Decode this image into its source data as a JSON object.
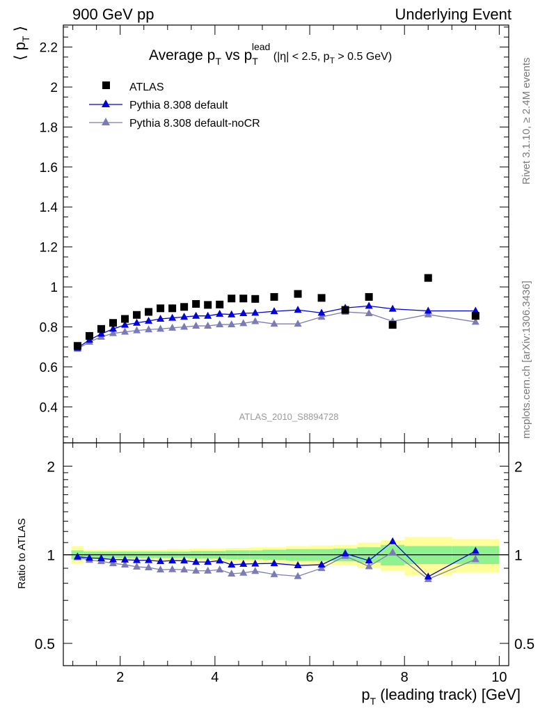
{
  "header": {
    "left": "900 GeV pp",
    "right": "Underlying Event"
  },
  "plot_title": {
    "main_a": "Average p",
    "main_a_sub": "T",
    "main_b": " vs p",
    "main_b_sub": "T",
    "main_b_sup": "lead",
    "cuts_a": " (|η| < 2.5, p",
    "cuts_sub": "T",
    "cuts_b": " > 0.5 GeV)"
  },
  "side_labels": {
    "rivet": "Rivet 3.1.10, ≥ 2.4M events",
    "mcplots": "mcplots.cern.ch [arXiv:1306.3436]"
  },
  "analysis_id": "ATLAS_2010_S8894728",
  "colors": {
    "atlas": "#000000",
    "pythia_default": "#0000dd",
    "pythia_nocr": "#7b7bb8",
    "band_stat": "#8ff28f",
    "band_total": "#ffff99"
  },
  "chart_data": {
    "type": "scatter",
    "ylabel": "⟨ p_T ⟩",
    "xlabel_a": "p",
    "xlabel_sub": "T",
    "xlabel_b": " (leading track) [GeV]",
    "xlim": [
      0.8,
      10.2
    ],
    "ylim": [
      0.22,
      2.31
    ],
    "yticks": [
      0.4,
      0.6,
      0.8,
      1,
      1.2,
      1.4,
      1.6,
      1.8,
      2,
      2.2
    ],
    "xticks": [
      2,
      4,
      6,
      8,
      10
    ],
    "x": [
      1.1,
      1.35,
      1.6,
      1.85,
      2.1,
      2.35,
      2.6,
      2.85,
      3.1,
      3.35,
      3.6,
      3.85,
      4.1,
      4.35,
      4.6,
      4.85,
      5.25,
      5.75,
      6.25,
      6.75,
      7.25,
      7.75,
      8.5,
      9.5
    ],
    "legend": [
      "ATLAS",
      "Pythia 8.308 default",
      "Pythia 8.308 default-noCR"
    ],
    "legend_position": "top-left",
    "series": [
      {
        "name": "ATLAS",
        "marker": "square",
        "values": [
          0.705,
          0.755,
          0.79,
          0.82,
          0.84,
          0.86,
          0.875,
          0.893,
          0.893,
          0.9,
          0.915,
          0.91,
          0.912,
          0.942,
          0.942,
          0.94,
          0.95,
          0.965,
          0.945,
          0.885,
          0.95,
          0.81,
          1.045,
          0.855
        ]
      },
      {
        "name": "Pythia 8.308 default",
        "marker": "triangle",
        "values": [
          0.695,
          0.735,
          0.765,
          0.79,
          0.81,
          0.82,
          0.83,
          0.84,
          0.845,
          0.85,
          0.855,
          0.855,
          0.865,
          0.862,
          0.868,
          0.87,
          0.878,
          0.885,
          0.87,
          0.895,
          0.905,
          0.89,
          0.88,
          0.88
        ]
      },
      {
        "name": "Pythia 8.308 default-noCR",
        "marker": "triangle",
        "values": [
          0.69,
          0.725,
          0.75,
          0.768,
          0.775,
          0.782,
          0.787,
          0.79,
          0.795,
          0.8,
          0.805,
          0.805,
          0.812,
          0.812,
          0.818,
          0.828,
          0.815,
          0.815,
          0.85,
          0.875,
          0.868,
          0.828,
          0.862,
          0.825
        ]
      }
    ],
    "ratio": {
      "ylabel": "Ratio to ATLAS",
      "yticks": [
        0.5,
        1,
        2
      ],
      "ylim": [
        0.42,
        2.4
      ],
      "log": true,
      "series": [
        {
          "name": "Pythia 8.308 default",
          "values": [
            0.985,
            0.975,
            0.972,
            0.963,
            0.962,
            0.958,
            0.958,
            0.95,
            0.955,
            0.955,
            0.945,
            0.945,
            0.955,
            0.925,
            0.93,
            0.932,
            0.935,
            0.92,
            0.925,
            1.01,
            0.955,
            1.11,
            0.842,
            1.03
          ]
        },
        {
          "name": "Pythia 8.308 default-noCR",
          "values": [
            0.98,
            0.96,
            0.95,
            0.935,
            0.925,
            0.91,
            0.905,
            0.89,
            0.892,
            0.89,
            0.882,
            0.882,
            0.89,
            0.862,
            0.868,
            0.88,
            0.858,
            0.845,
            0.9,
            0.99,
            0.913,
            1.02,
            0.826,
            0.965
          ]
        }
      ],
      "band_edges": [
        0.97,
        1.225,
        1.475,
        1.725,
        1.975,
        2.225,
        2.475,
        2.725,
        2.975,
        3.225,
        3.475,
        3.725,
        3.975,
        4.225,
        4.475,
        4.725,
        5.0,
        5.5,
        6.0,
        6.5,
        7.0,
        7.5,
        8.0,
        9.0,
        10.0
      ],
      "band_stat": [
        0.035,
        0.025,
        0.025,
        0.025,
        0.025,
        0.025,
        0.025,
        0.025,
        0.025,
        0.025,
        0.03,
        0.03,
        0.03,
        0.035,
        0.035,
        0.035,
        0.04,
        0.045,
        0.045,
        0.05,
        0.06,
        0.08,
        0.07,
        0.07
      ],
      "band_total": [
        0.07,
        0.04,
        0.04,
        0.04,
        0.04,
        0.04,
        0.04,
        0.04,
        0.045,
        0.045,
        0.05,
        0.05,
        0.05,
        0.055,
        0.055,
        0.06,
        0.06,
        0.07,
        0.075,
        0.08,
        0.1,
        0.12,
        0.15,
        0.13
      ]
    }
  }
}
